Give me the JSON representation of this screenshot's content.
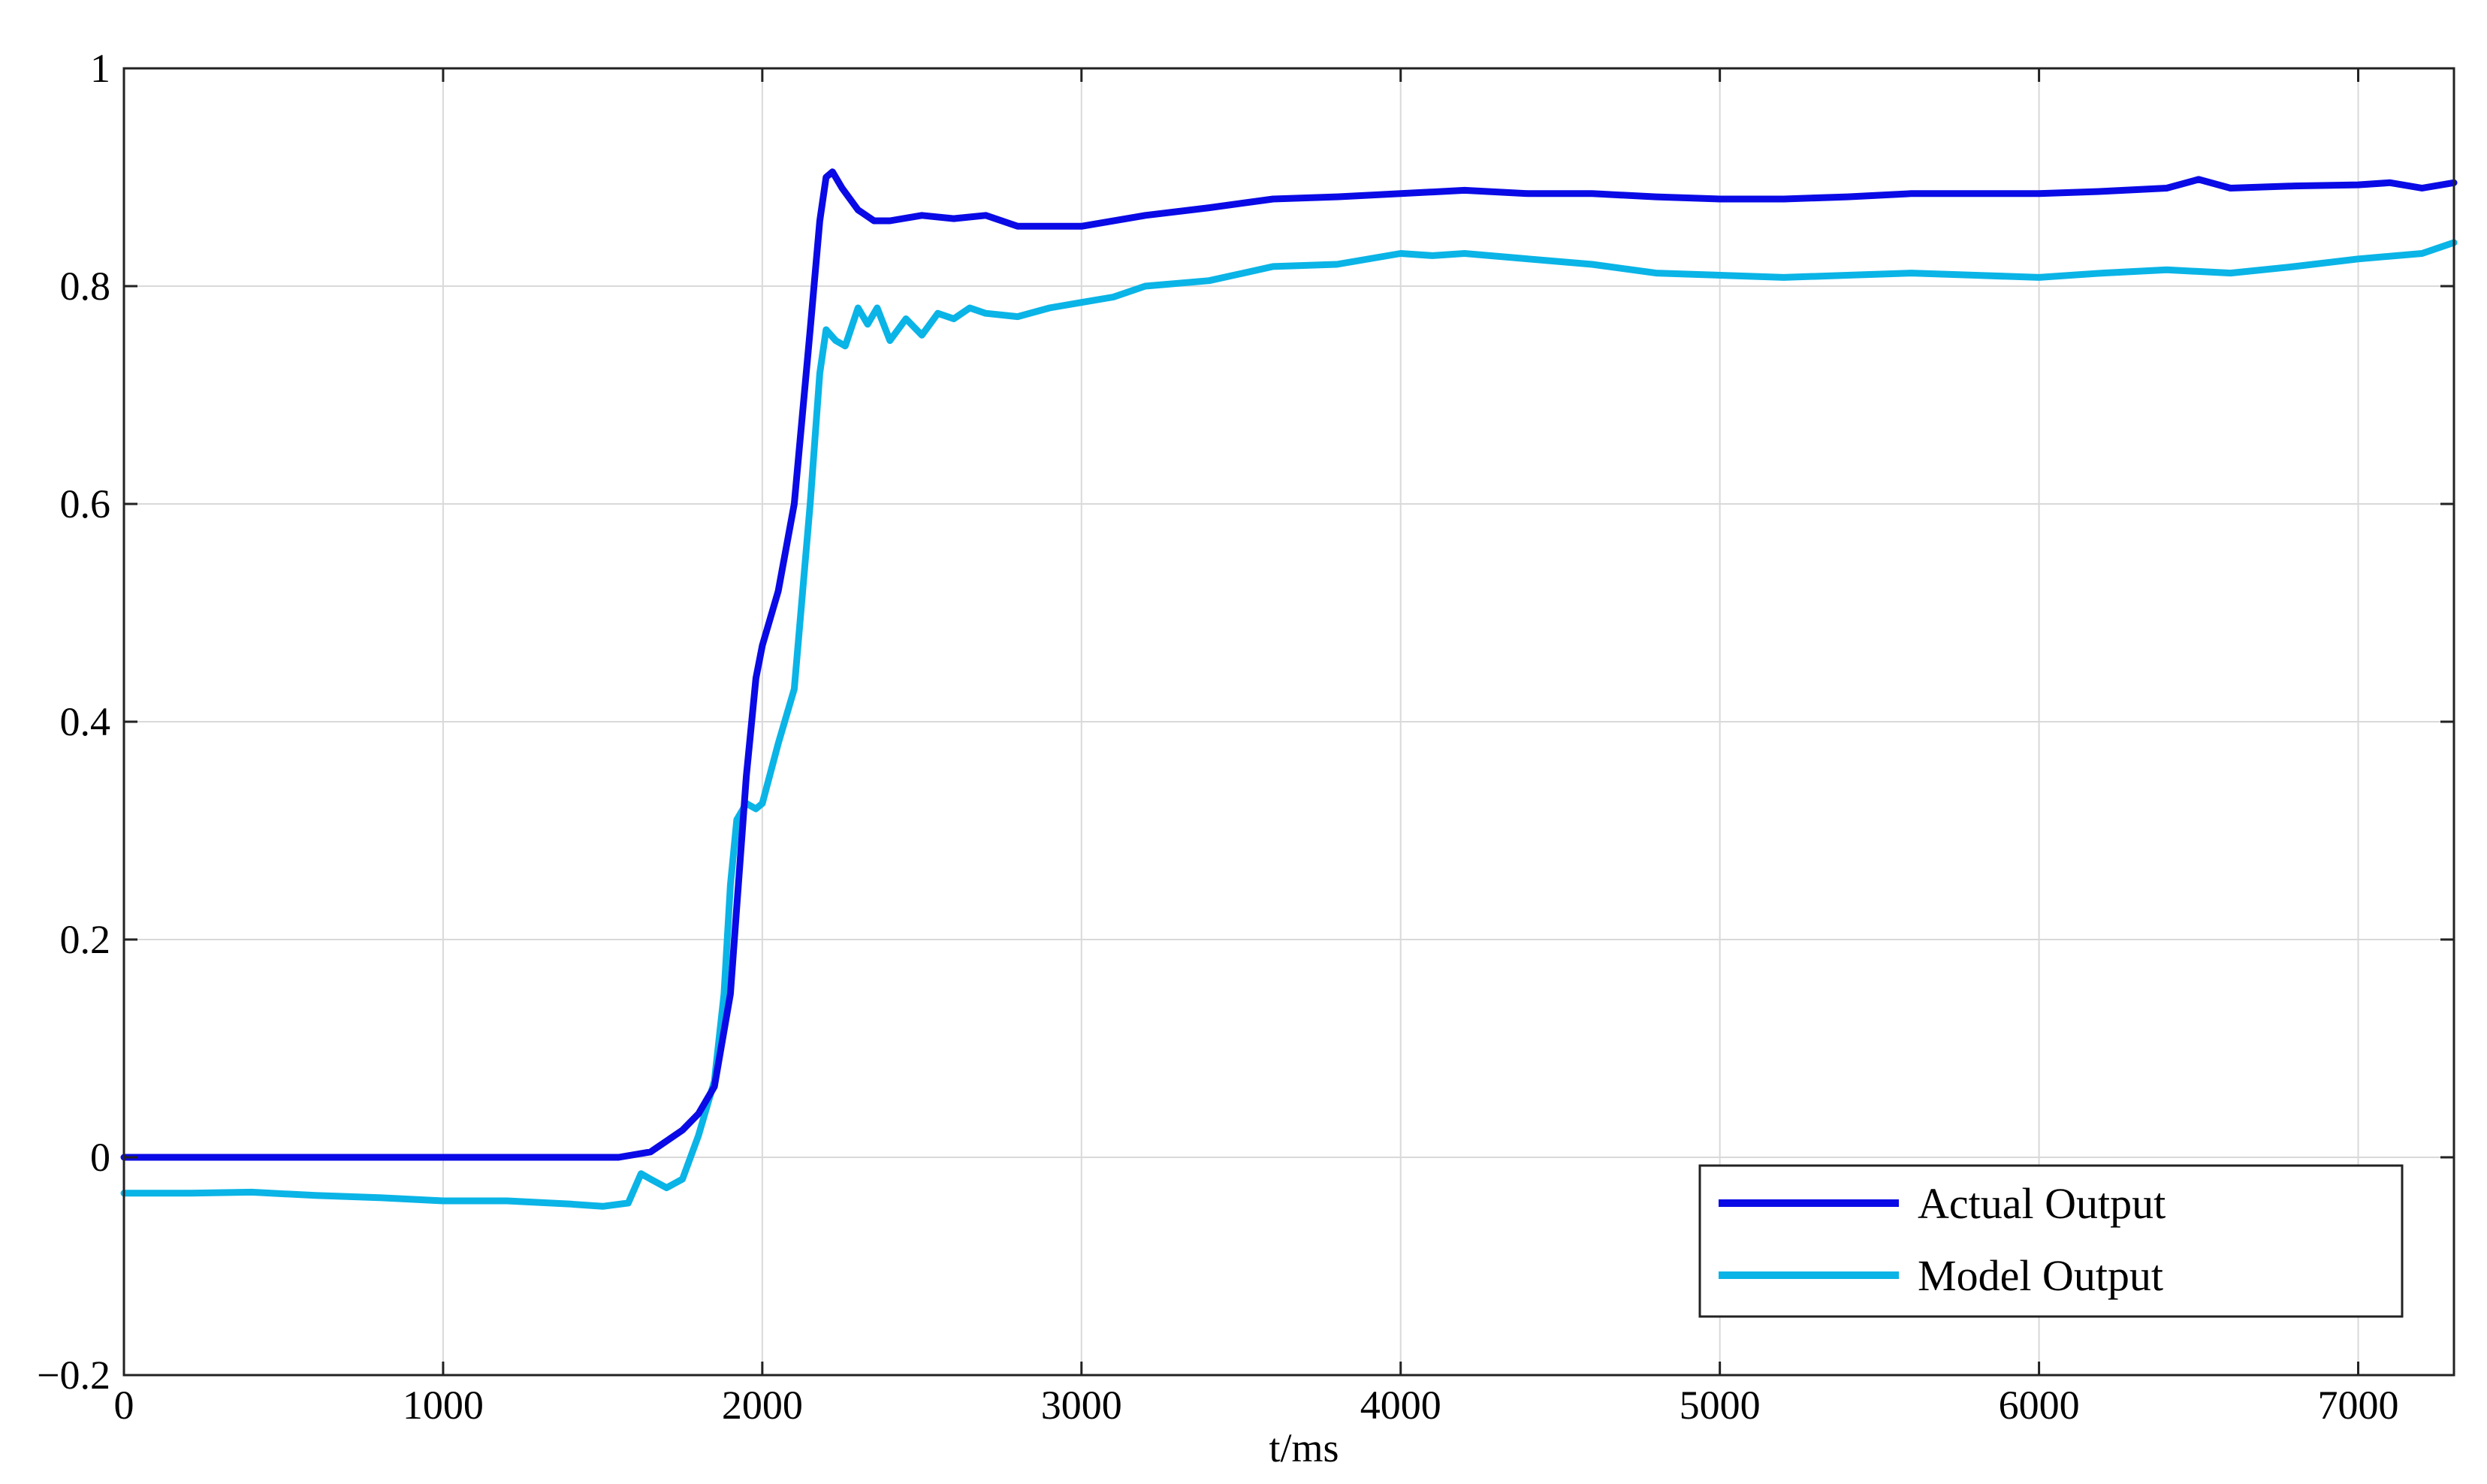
{
  "chart_data": {
    "type": "line",
    "title": "",
    "xlabel": "t/ms",
    "ylabel": "",
    "xlim": [
      0,
      7300
    ],
    "ylim": [
      -0.2,
      1
    ],
    "xticks": [
      0,
      1000,
      2000,
      3000,
      4000,
      5000,
      6000,
      7000
    ],
    "xtick_labels": [
      "0",
      "1000",
      "2000",
      "3000",
      "4000",
      "5000",
      "6000",
      "7000"
    ],
    "yticks": [
      -0.2,
      0,
      0.2,
      0.4,
      0.6,
      0.8,
      1
    ],
    "ytick_labels": [
      "−0.2",
      "0",
      "0.2",
      "0.4",
      "0.6",
      "0.8",
      "1"
    ],
    "grid": true,
    "legend_position": "bottom-right",
    "series": [
      {
        "name": "Actual Output",
        "color": "#0a0ae6",
        "x": [
          0,
          200,
          400,
          600,
          800,
          1000,
          1200,
          1400,
          1550,
          1650,
          1700,
          1750,
          1800,
          1850,
          1900,
          1950,
          1980,
          2000,
          2050,
          2100,
          2150,
          2180,
          2200,
          2220,
          2250,
          2300,
          2350,
          2400,
          2500,
          2600,
          2700,
          2800,
          2900,
          3000,
          3200,
          3400,
          3600,
          3800,
          4000,
          4200,
          4400,
          4600,
          4800,
          5000,
          5200,
          5400,
          5600,
          5800,
          6000,
          6200,
          6400,
          6500,
          6600,
          6800,
          7000,
          7100,
          7200,
          7300
        ],
        "y": [
          0.0,
          0.0,
          0.0,
          0.0,
          0.0,
          0.0,
          0.0,
          0.0,
          0.0,
          0.005,
          0.015,
          0.025,
          0.04,
          0.065,
          0.15,
          0.35,
          0.44,
          0.47,
          0.52,
          0.6,
          0.76,
          0.86,
          0.9,
          0.905,
          0.89,
          0.87,
          0.86,
          0.86,
          0.865,
          0.862,
          0.865,
          0.855,
          0.855,
          0.855,
          0.865,
          0.872,
          0.88,
          0.882,
          0.885,
          0.888,
          0.885,
          0.885,
          0.882,
          0.88,
          0.88,
          0.882,
          0.885,
          0.885,
          0.885,
          0.887,
          0.89,
          0.898,
          0.89,
          0.892,
          0.893,
          0.895,
          0.89,
          0.895
        ]
      },
      {
        "name": "Model Output",
        "color": "#0ab4e6",
        "x": [
          0,
          200,
          400,
          600,
          800,
          1000,
          1200,
          1400,
          1500,
          1580,
          1620,
          1650,
          1700,
          1750,
          1800,
          1850,
          1880,
          1900,
          1920,
          1950,
          1980,
          2000,
          2050,
          2100,
          2150,
          2180,
          2200,
          2230,
          2260,
          2300,
          2330,
          2360,
          2400,
          2450,
          2500,
          2550,
          2600,
          2650,
          2700,
          2800,
          2900,
          3000,
          3100,
          3200,
          3400,
          3600,
          3800,
          4000,
          4100,
          4200,
          4400,
          4600,
          4800,
          5000,
          5200,
          5400,
          5600,
          5800,
          6000,
          6200,
          6400,
          6600,
          6800,
          7000,
          7200,
          7300
        ],
        "y": [
          -0.033,
          -0.033,
          -0.032,
          -0.035,
          -0.037,
          -0.04,
          -0.04,
          -0.043,
          -0.045,
          -0.042,
          -0.015,
          -0.02,
          -0.028,
          -0.02,
          0.02,
          0.07,
          0.15,
          0.25,
          0.31,
          0.325,
          0.32,
          0.325,
          0.38,
          0.43,
          0.6,
          0.72,
          0.76,
          0.75,
          0.745,
          0.78,
          0.765,
          0.78,
          0.75,
          0.77,
          0.755,
          0.775,
          0.77,
          0.78,
          0.775,
          0.772,
          0.78,
          0.785,
          0.79,
          0.8,
          0.805,
          0.818,
          0.82,
          0.83,
          0.828,
          0.83,
          0.825,
          0.82,
          0.812,
          0.81,
          0.808,
          0.81,
          0.812,
          0.81,
          0.808,
          0.812,
          0.815,
          0.812,
          0.818,
          0.825,
          0.83,
          0.84
        ]
      }
    ]
  }
}
